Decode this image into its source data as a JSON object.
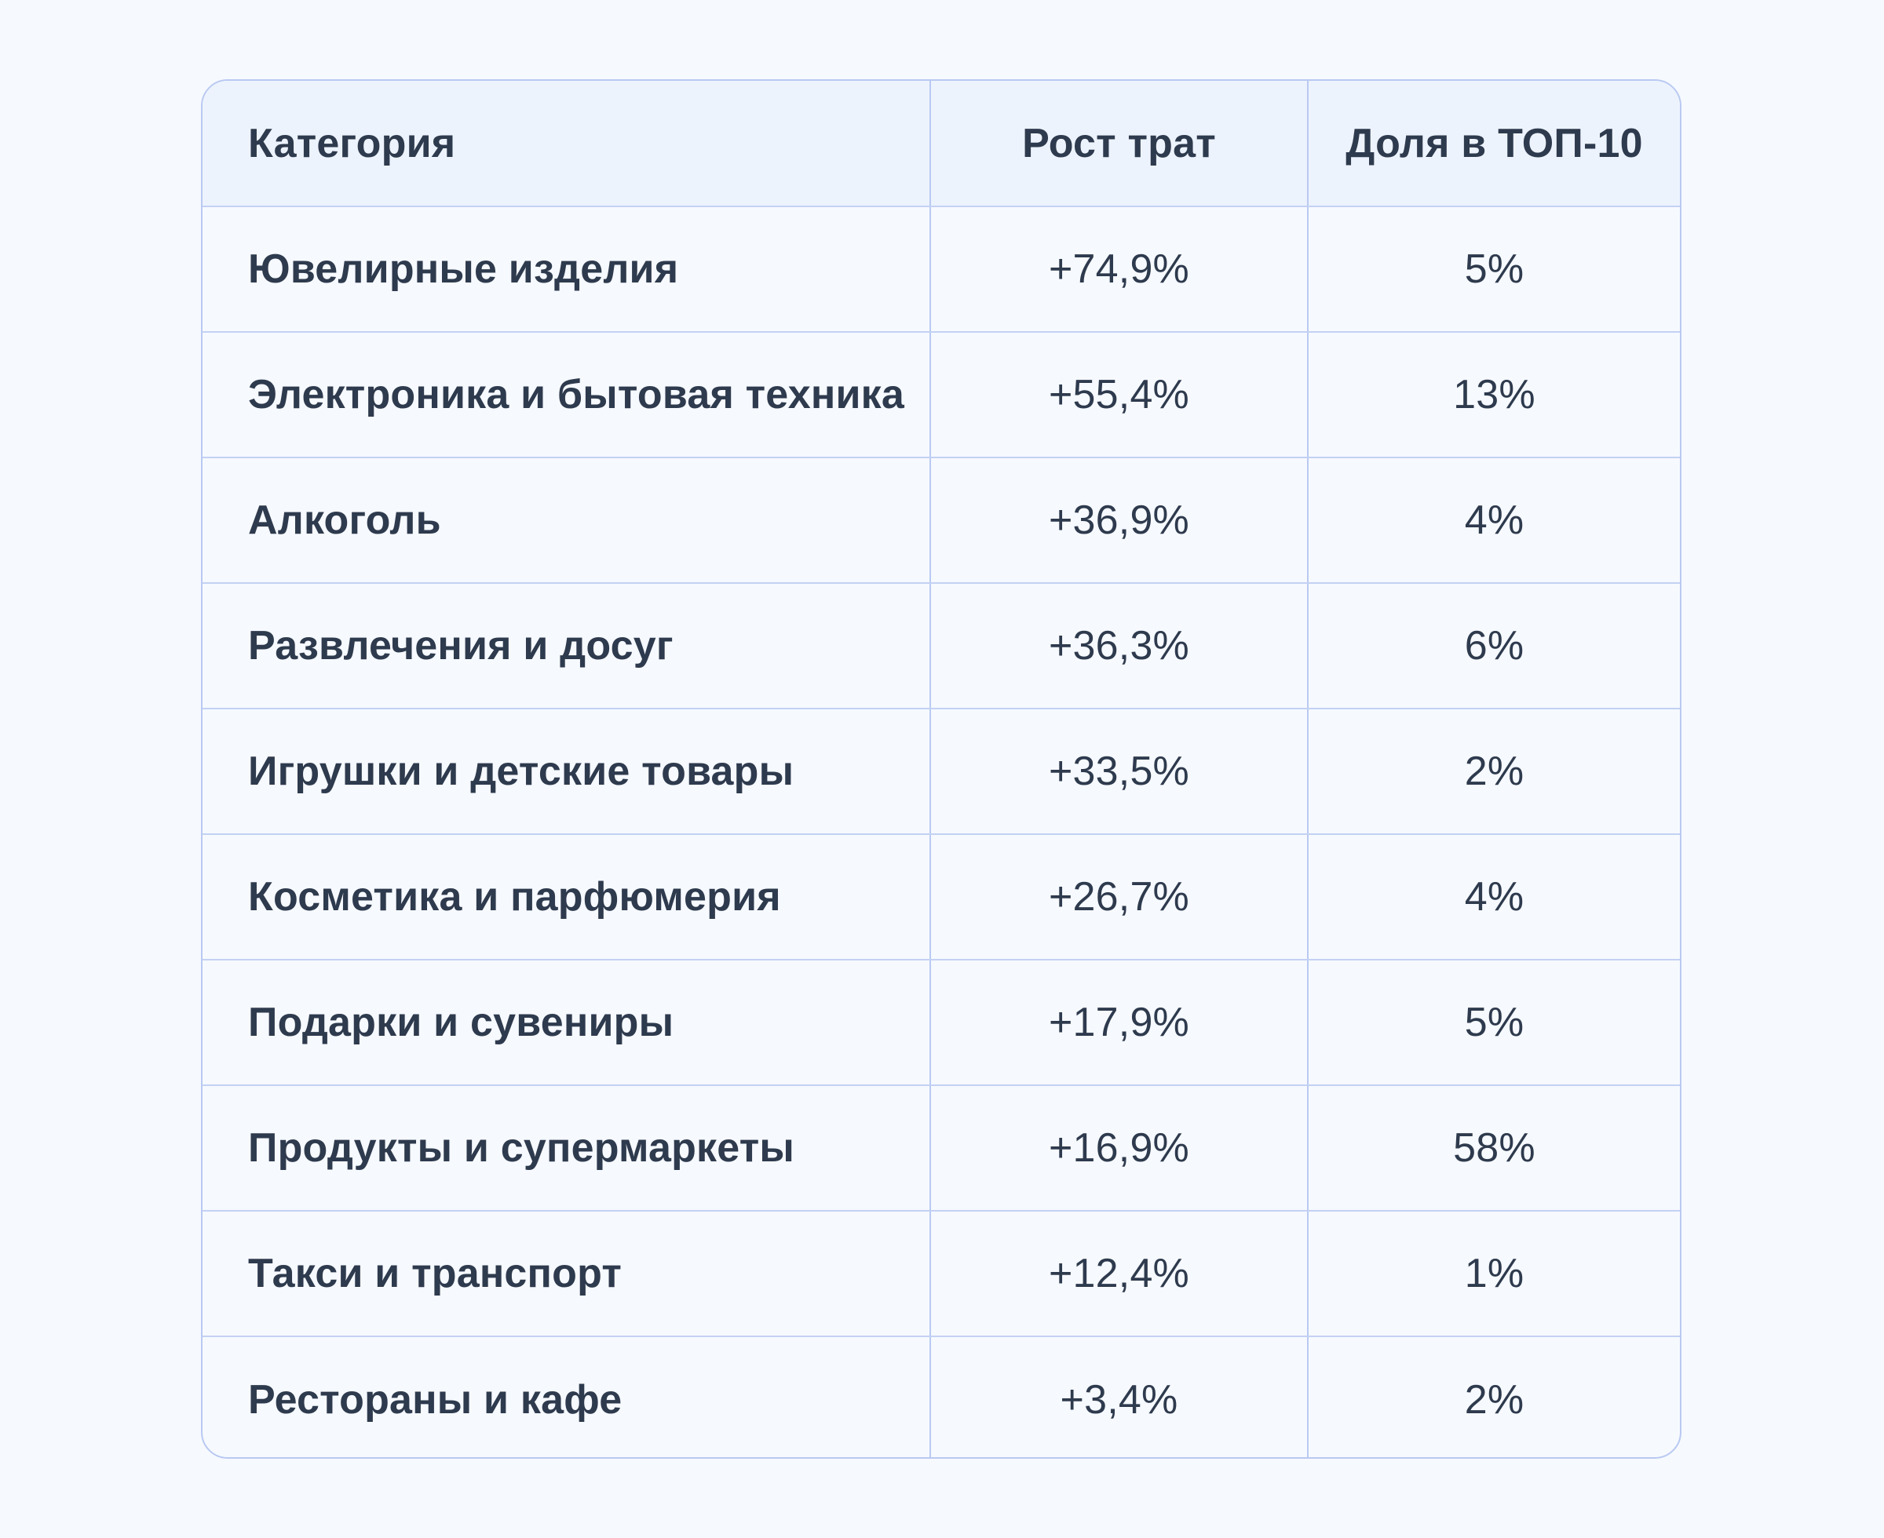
{
  "table": {
    "headers": {
      "category": "Категория",
      "growth": "Рост трат",
      "share": "Доля в ТОП-10"
    },
    "rows": [
      {
        "category": "Ювелирные изделия",
        "growth": "+74,9%",
        "share": "5%"
      },
      {
        "category": "Электроника и бытовая техника",
        "growth": "+55,4%",
        "share": "13%"
      },
      {
        "category": "Алкоголь",
        "growth": "+36,9%",
        "share": "4%"
      },
      {
        "category": "Развлечения и досуг",
        "growth": "+36,3%",
        "share": "6%"
      },
      {
        "category": "Игрушки и детские товары",
        "growth": "+33,5%",
        "share": "2%"
      },
      {
        "category": "Косметика и парфюмерия",
        "growth": "+26,7%",
        "share": "4%"
      },
      {
        "category": "Подарки и сувениры",
        "growth": "+17,9%",
        "share": "5%"
      },
      {
        "category": "Продукты и супермаркеты",
        "growth": "+16,9%",
        "share": "58%"
      },
      {
        "category": "Такси и транспорт",
        "growth": "+12,4%",
        "share": "1%"
      },
      {
        "category": "Рестораны и кафе",
        "growth": "+3,4%",
        "share": "2%"
      }
    ]
  },
  "colors": {
    "background": "#f6f9fe",
    "header_background": "#edf3fd",
    "border": "#b9c9f2",
    "text": "#2e3a4d"
  }
}
